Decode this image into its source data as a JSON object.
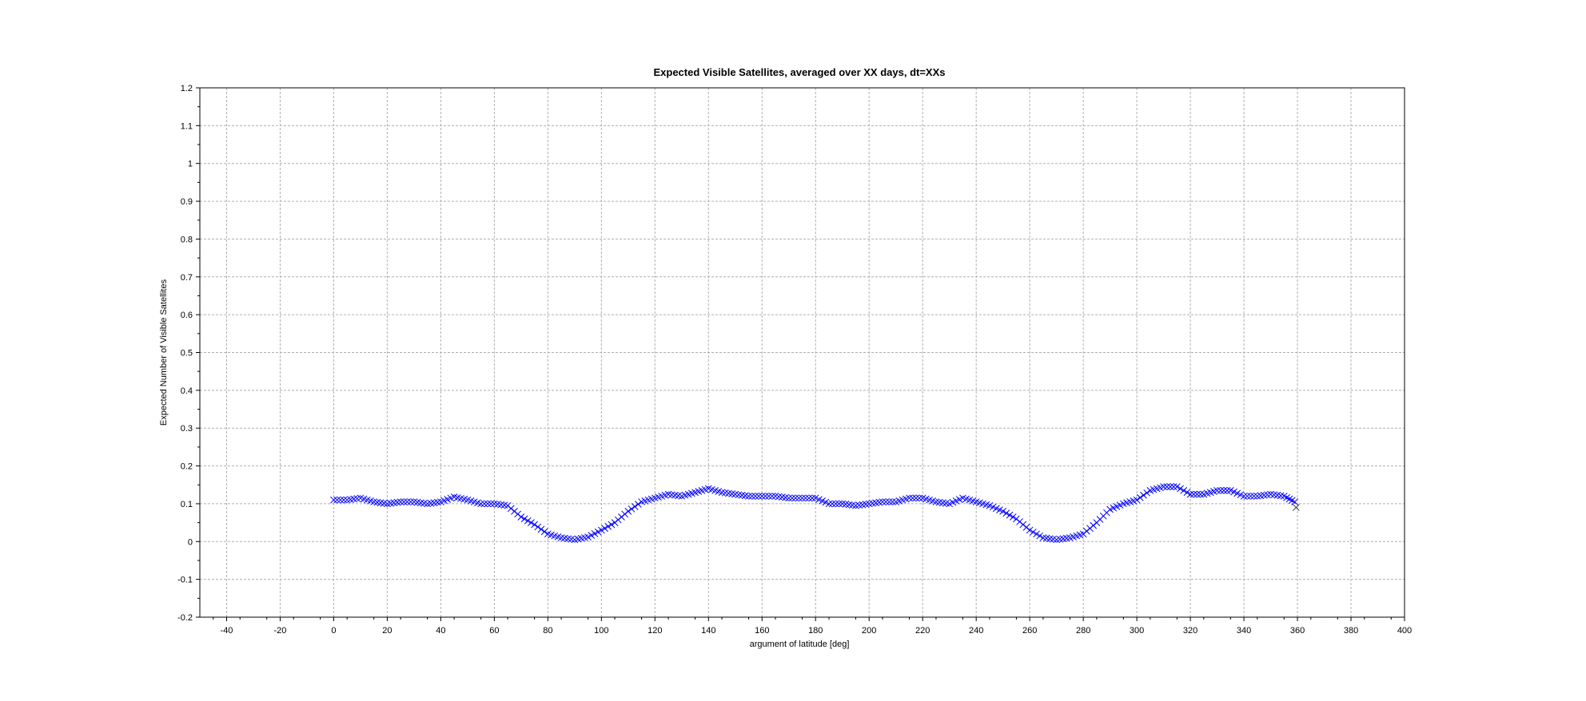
{
  "chart_data": {
    "type": "scatter",
    "title": "Expected Visible Satellites, averaged over XX days, dt=XXs",
    "xlabel": "argument of latitude [deg]",
    "ylabel": "Expected Number of Visible Satellites",
    "xlim": [
      -50,
      400
    ],
    "ylim": [
      -0.2,
      1.2
    ],
    "x_ticks": [
      "-40",
      "-20",
      "0",
      "20",
      "40",
      "60",
      "80",
      "100",
      "120",
      "140",
      "160",
      "180",
      "200",
      "220",
      "240",
      "260",
      "280",
      "300",
      "320",
      "340",
      "360",
      "380",
      "400"
    ],
    "y_ticks": [
      "-0.2",
      "-0.1",
      "0",
      "0.1",
      "0.2",
      "0.3",
      "0.4",
      "0.5",
      "0.6",
      "0.7",
      "0.8",
      "0.9",
      "1",
      "1.1",
      "1.2"
    ],
    "grid": true,
    "marker": "x",
    "colors": {
      "series": "#0000ff",
      "outlier": "#444444",
      "grid": "#b0b0b0",
      "axis": "#000000"
    },
    "series": [
      {
        "x": [
          0,
          5,
          10,
          15,
          20,
          25,
          30,
          35,
          40,
          45,
          50,
          55,
          60,
          65,
          70,
          75,
          80,
          85,
          90,
          95,
          100,
          105,
          110,
          115,
          120,
          125,
          130,
          135,
          140,
          145,
          150,
          155,
          160,
          165,
          170,
          175,
          180,
          185,
          190,
          195,
          200,
          205,
          210,
          215,
          220,
          225,
          230,
          235,
          240,
          245,
          250,
          255,
          260,
          265,
          270,
          275,
          280,
          285,
          290,
          295,
          300,
          305,
          310,
          315,
          320,
          325,
          330,
          335,
          340,
          345,
          350,
          355,
          359
        ],
        "y": [
          0.11,
          0.11,
          0.115,
          0.105,
          0.1,
          0.105,
          0.105,
          0.1,
          0.105,
          0.118,
          0.11,
          0.1,
          0.1,
          0.095,
          0.065,
          0.045,
          0.02,
          0.01,
          0.005,
          0.012,
          0.03,
          0.05,
          0.08,
          0.105,
          0.115,
          0.125,
          0.12,
          0.13,
          0.14,
          0.13,
          0.125,
          0.12,
          0.12,
          0.12,
          0.115,
          0.115,
          0.115,
          0.1,
          0.1,
          0.095,
          0.1,
          0.105,
          0.105,
          0.115,
          0.115,
          0.105,
          0.1,
          0.115,
          0.105,
          0.095,
          0.08,
          0.06,
          0.03,
          0.01,
          0.005,
          0.01,
          0.02,
          0.05,
          0.085,
          0.1,
          0.11,
          0.135,
          0.145,
          0.145,
          0.125,
          0.125,
          0.135,
          0.135,
          0.12,
          0.12,
          0.125,
          0.12,
          0.105
        ]
      },
      {
        "x": [
          359.5
        ],
        "y": [
          0.09
        ]
      }
    ]
  }
}
